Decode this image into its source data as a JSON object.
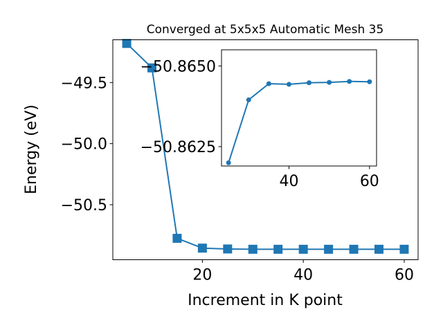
{
  "chart_data": [
    {
      "type": "line",
      "title": "Converged at 5x5x5 Automatic Mesh 35",
      "xlabel": "Increment in K point",
      "ylabel": "Energy (eV)",
      "xlim": [
        2.25,
        62.75
      ],
      "ylim": [
        -50.95,
        -49.15
      ],
      "x_ticks": [
        20,
        40,
        60
      ],
      "y_ticks": [
        -49.5,
        -50.0,
        -50.5
      ],
      "y_tick_labels": [
        "−49.5",
        "−50.0",
        "−50.5"
      ],
      "marker": "square",
      "color": "#1f77b4",
      "series": [
        {
          "x": [
            5,
            10,
            15,
            20,
            25,
            30,
            35,
            40,
            45,
            50,
            55,
            60
          ],
          "y": [
            -49.18,
            -49.38,
            -50.775,
            -50.855,
            -50.862,
            -50.8645,
            -50.8645,
            -50.8645,
            -50.8645,
            -50.8644,
            -50.8644,
            -50.8644
          ]
        }
      ]
    },
    {
      "type": "line",
      "title": "",
      "inset": true,
      "xlim": [
        23.25,
        61.75
      ],
      "ylim": [
        -50.8619,
        -50.8655
      ],
      "x_ticks": [
        40,
        60
      ],
      "y_ticks": [
        -50.865,
        -50.8625
      ],
      "y_tick_labels": [
        "−50.8650",
        "−50.8625"
      ],
      "marker": "circle",
      "color": "#1f77b4",
      "series": [
        {
          "x": [
            25,
            30,
            35,
            40,
            45,
            50,
            55,
            60
          ],
          "y": [
            -50.862,
            -50.86395,
            -50.86445,
            -50.86443,
            -50.86448,
            -50.86449,
            -50.86452,
            -50.86451
          ]
        }
      ]
    }
  ]
}
